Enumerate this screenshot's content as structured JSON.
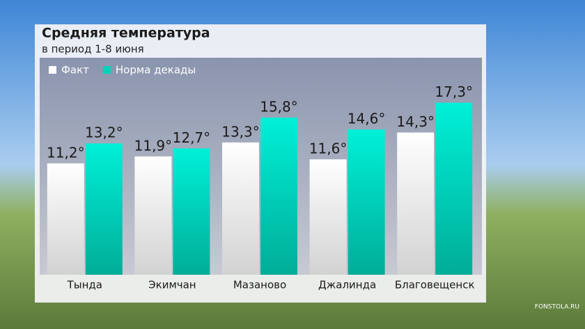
{
  "chart_data": {
    "type": "bar",
    "title": "Средняя температура",
    "subtitle": "в период 1-8 июня",
    "categories": [
      "Тында",
      "Экимчан",
      "Мазаново",
      "Джалинда",
      "Благовещенск"
    ],
    "series": [
      {
        "name": "Факт",
        "color": "#ececec",
        "values": [
          11.2,
          11.9,
          13.3,
          11.6,
          14.3
        ],
        "value_labels": [
          "11,2°",
          "11,9°",
          "13,3°",
          "11,6°",
          "14,3°"
        ]
      },
      {
        "name": "Норма декады",
        "color": "#00d2b8",
        "values": [
          13.2,
          12.7,
          15.8,
          14.6,
          17.3
        ],
        "value_labels": [
          "13,2°",
          "12,7°",
          "15,8°",
          "14,6°",
          "17,3°"
        ]
      }
    ],
    "ylim": [
      0,
      20
    ],
    "legend": "top-left",
    "source": "FONSTOLA.RU"
  }
}
